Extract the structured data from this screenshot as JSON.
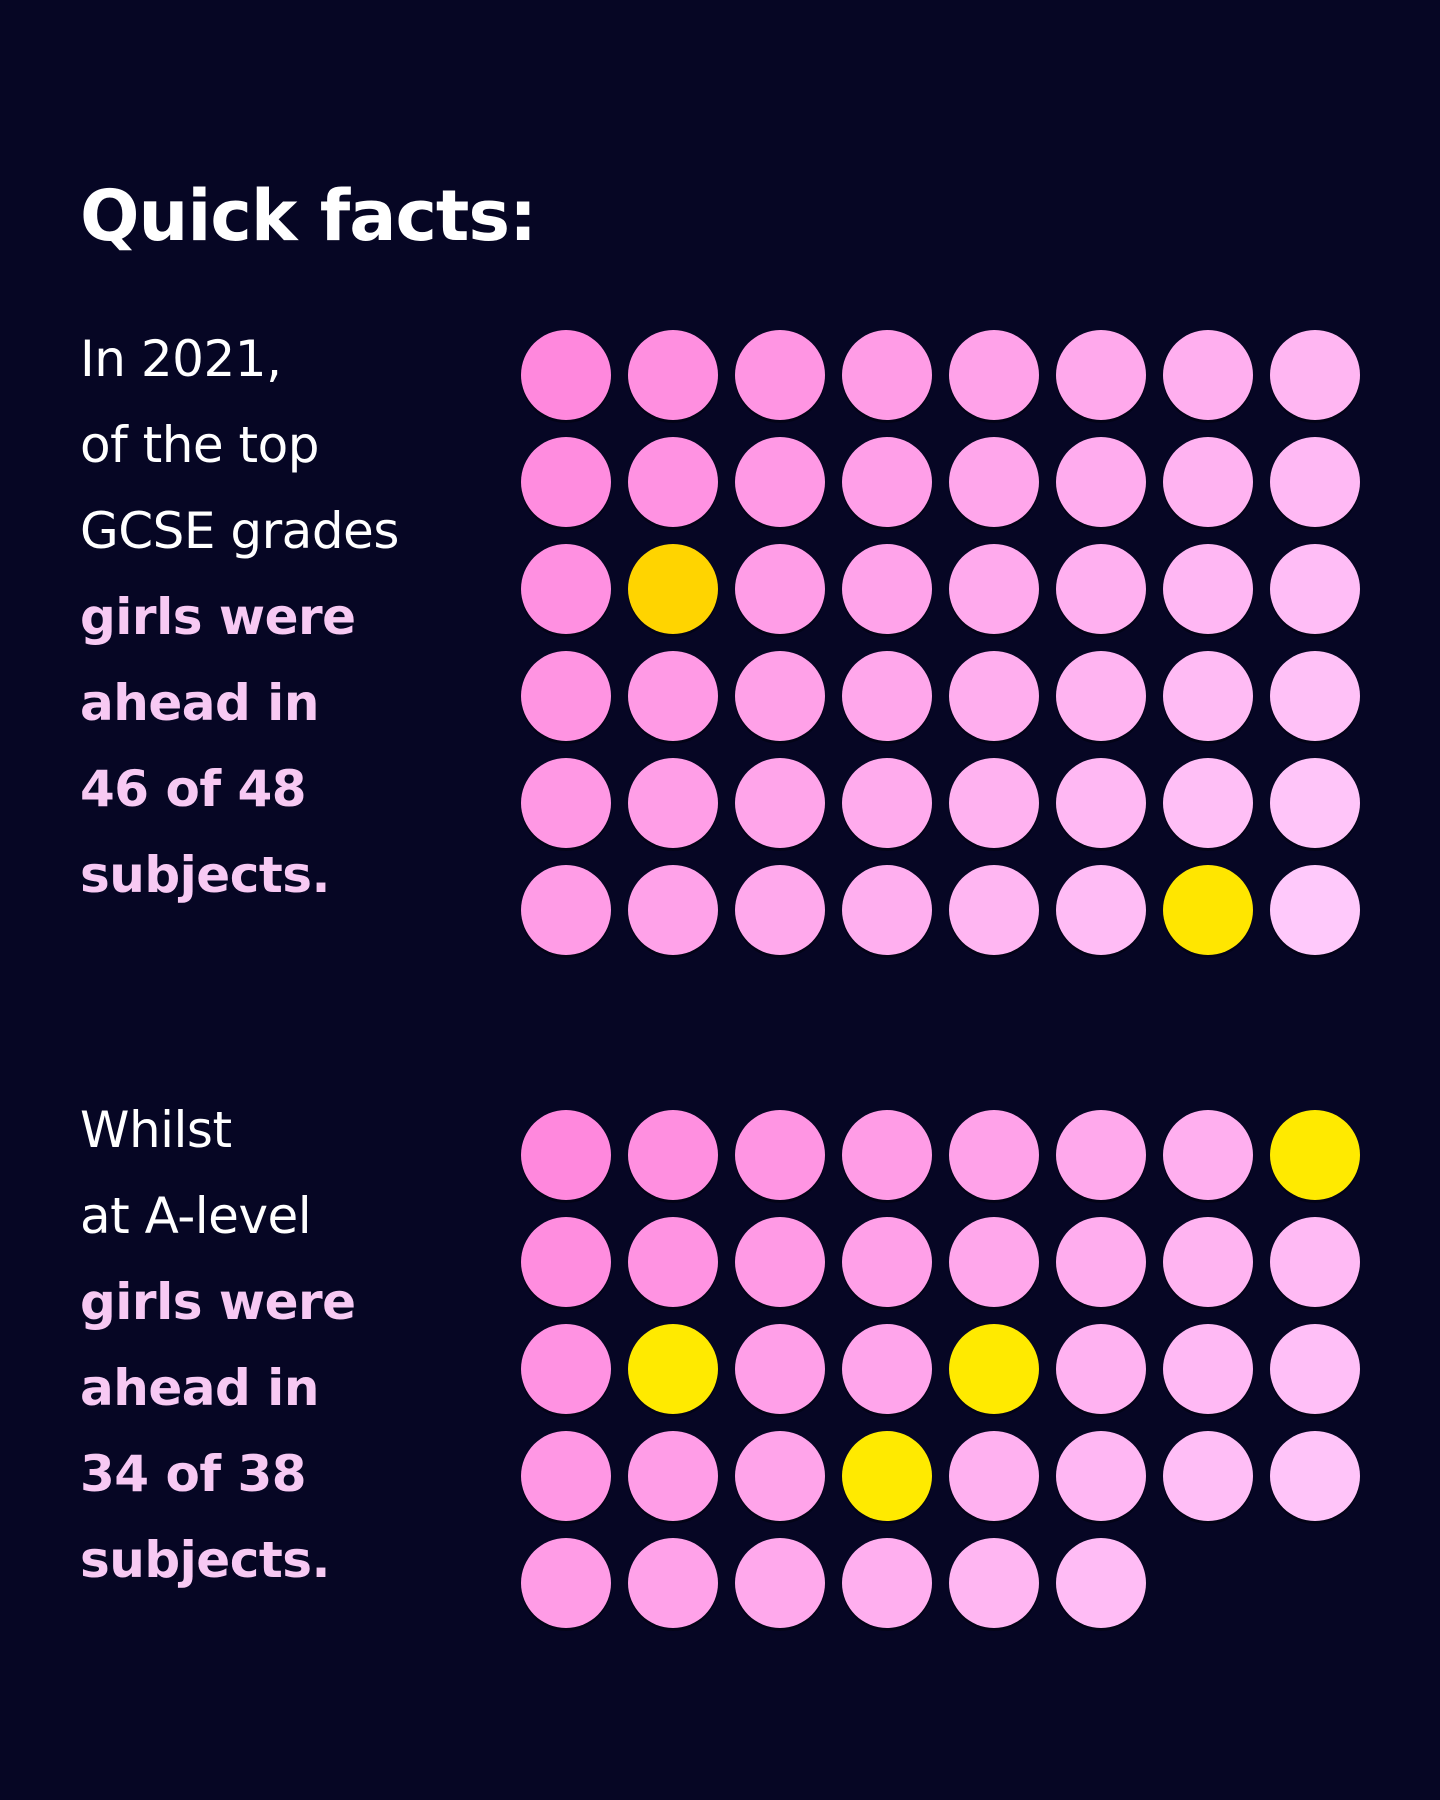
{
  "title": "Quick facts:",
  "colors": {
    "background": "#060624",
    "pink_start": "#ff88dd",
    "pink_end": "#ffc9fb",
    "highlight_gcse": [
      "#ffd400",
      "#ffe600"
    ],
    "highlight": "#ffea00",
    "accent_text": "#f7c9f3"
  },
  "blocks": [
    {
      "text_lines": [
        {
          "text": "In 2021,",
          "accent": false
        },
        {
          "text": "of the top",
          "accent": false
        },
        {
          "text": "GCSE grades",
          "accent": false
        },
        {
          "text": "girls were",
          "accent": true
        },
        {
          "text": "ahead in",
          "accent": true
        },
        {
          "text": "46 of 48",
          "accent": true
        },
        {
          "text": "subjects.",
          "accent": true
        }
      ]
    },
    {
      "text_lines": [
        {
          "text": "Whilst",
          "accent": false
        },
        {
          "text": "at A-level",
          "accent": false
        },
        {
          "text": "girls were",
          "accent": true
        },
        {
          "text": "ahead in",
          "accent": true
        },
        {
          "text": "34 of 38",
          "accent": true
        },
        {
          "text": "subjects.",
          "accent": true
        }
      ]
    }
  ],
  "chart_data": [
    {
      "type": "waffle",
      "total": 48,
      "columns": 8,
      "girls_ahead": 46,
      "highlighted_positions": [
        [
          3,
          2
        ],
        [
          6,
          7
        ]
      ]
    },
    {
      "type": "waffle",
      "total": 38,
      "columns": 8,
      "girls_ahead": 34,
      "highlighted_positions": [
        [
          1,
          8
        ],
        [
          3,
          2
        ],
        [
          3,
          5
        ],
        [
          4,
          4
        ]
      ]
    }
  ]
}
